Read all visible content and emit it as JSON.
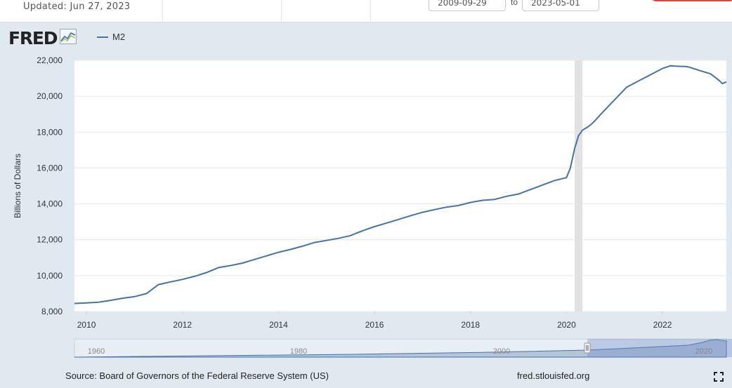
{
  "header": {
    "updated": "Updated: Jun 27, 2023",
    "date_start": "2009-09-29",
    "date_sep": "to",
    "date_end": "2023-05-01"
  },
  "brand": {
    "logo": "FRED",
    "icon": "line-chart-icon"
  },
  "chart_data": {
    "type": "line",
    "title": "",
    "xlabel": "",
    "ylabel": "Billions of Dollars",
    "ylim": [
      8000,
      22000
    ],
    "xlim": [
      2009.75,
      2023.33
    ],
    "yticks": [
      "8,000",
      "10,000",
      "12,000",
      "14,000",
      "16,000",
      "18,000",
      "20,000",
      "22,000"
    ],
    "xticks": [
      "2010",
      "2012",
      "2014",
      "2016",
      "2018",
      "2020",
      "2022"
    ],
    "grid": true,
    "legend_position": "top-left",
    "recession_shading": [
      2020.17,
      2020.33
    ],
    "series": [
      {
        "name": "M2",
        "color": "#4572a7",
        "x": [
          2009.75,
          2010.0,
          2010.25,
          2010.5,
          2010.75,
          2011.0,
          2011.25,
          2011.5,
          2011.75,
          2012.0,
          2012.25,
          2012.5,
          2012.75,
          2013.0,
          2013.25,
          2013.5,
          2013.75,
          2014.0,
          2014.25,
          2014.5,
          2014.75,
          2015.0,
          2015.25,
          2015.5,
          2015.75,
          2016.0,
          2016.25,
          2016.5,
          2016.75,
          2017.0,
          2017.25,
          2017.5,
          2017.75,
          2018.0,
          2018.25,
          2018.5,
          2018.75,
          2019.0,
          2019.25,
          2019.5,
          2019.75,
          2020.0,
          2020.08,
          2020.17,
          2020.25,
          2020.33,
          2020.42,
          2020.5,
          2020.58,
          2020.75,
          2021.0,
          2021.25,
          2021.5,
          2021.75,
          2022.0,
          2022.17,
          2022.25,
          2022.5,
          2022.58,
          2022.75,
          2023.0,
          2023.17,
          2023.25,
          2023.33
        ],
        "values": [
          8450,
          8480,
          8520,
          8620,
          8740,
          8830,
          9000,
          9500,
          9650,
          9790,
          9960,
          10170,
          10450,
          10560,
          10700,
          10900,
          11100,
          11300,
          11460,
          11640,
          11850,
          11960,
          12080,
          12230,
          12500,
          12730,
          12930,
          13130,
          13340,
          13530,
          13680,
          13820,
          13910,
          14080,
          14200,
          14250,
          14420,
          14550,
          14800,
          15050,
          15300,
          15460,
          16000,
          17100,
          17800,
          18100,
          18250,
          18400,
          18600,
          19100,
          19800,
          20500,
          20850,
          21200,
          21550,
          21700,
          21680,
          21650,
          21600,
          21450,
          21250,
          20900,
          20700,
          20800
        ]
      }
    ],
    "navigator": {
      "labels": [
        "1960",
        "1980",
        "2000",
        "2020"
      ]
    }
  },
  "footer": {
    "source": "Source: Board of Governors of the Federal Reserve System (US)",
    "site": "fred.stlouisfed.org",
    "fullscreen_icon": "fullscreen-icon"
  }
}
